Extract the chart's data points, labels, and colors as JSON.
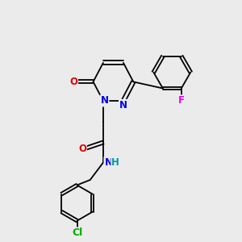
{
  "background_color": "#ebebeb",
  "bond_color": "#000000",
  "atom_colors": {
    "N": "#0000ee",
    "O": "#dd0000",
    "F": "#ee00ee",
    "Cl": "#00aa00",
    "C": "#000000",
    "H": "#009999"
  },
  "lw": 1.3,
  "fs": 8.5
}
